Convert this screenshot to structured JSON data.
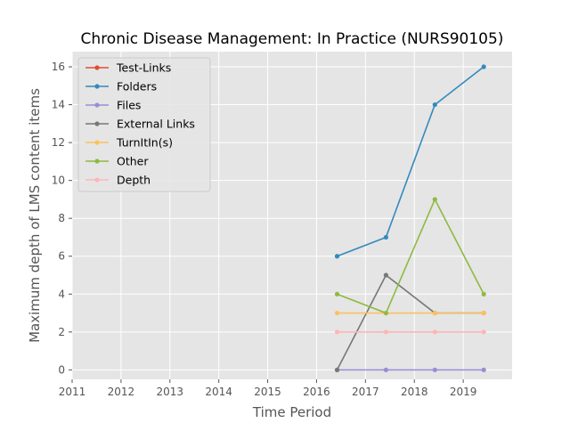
{
  "chart_data": {
    "type": "line",
    "title": "Chronic Disease Management: In Practice (NURS90105)",
    "xlabel": "Time Period",
    "ylabel": "Maximum depth of LMS content items",
    "xlim": [
      2011,
      2020
    ],
    "ylim": [
      -0.5,
      16.8
    ],
    "x_ticks": [
      "2011",
      "2012",
      "2013",
      "2014",
      "2015",
      "2016",
      "2017",
      "2018",
      "2019"
    ],
    "y_ticks": [
      "0",
      "2",
      "4",
      "6",
      "8",
      "10",
      "12",
      "14",
      "16"
    ],
    "grid": true,
    "legend_position": "upper-left",
    "x": [
      2016.42,
      2017.42,
      2018.42,
      2019.42
    ],
    "series": [
      {
        "name": "Test-Links",
        "color": "#e24a33",
        "values": [
          null,
          null,
          null,
          null
        ]
      },
      {
        "name": "Folders",
        "color": "#348abd",
        "values": [
          6,
          7,
          14,
          16
        ]
      },
      {
        "name": "Files",
        "color": "#988ed5",
        "values": [
          0,
          0,
          0,
          0
        ]
      },
      {
        "name": "External Links",
        "color": "#777777",
        "values": [
          0,
          5,
          3,
          3
        ]
      },
      {
        "name": "TurnItIn(s)",
        "color": "#fbc15e",
        "values": [
          3,
          3,
          3,
          3
        ]
      },
      {
        "name": "Other",
        "color": "#8eba42",
        "values": [
          4,
          3,
          9,
          4
        ]
      },
      {
        "name": "Depth",
        "color": "#ffb5b8",
        "values": [
          2,
          2,
          2,
          2
        ]
      }
    ]
  }
}
